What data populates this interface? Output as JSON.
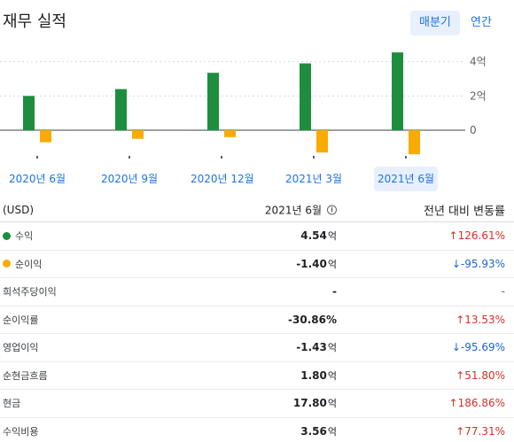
{
  "header": {
    "title": "재무 실적",
    "toggle_quarterly": "매분기",
    "toggle_annual": "연간"
  },
  "chart_data": {
    "type": "bar",
    "categories": [
      "2020년 6월",
      "2020년 9월",
      "2020년 12월",
      "2021년 3월",
      "2021년 6월"
    ],
    "series": [
      {
        "name": "수익",
        "values": [
          2.0,
          2.4,
          3.35,
          3.9,
          4.54
        ],
        "color": "#1e8e3e"
      },
      {
        "name": "순이익",
        "values": [
          -0.7,
          -0.5,
          -0.4,
          -1.3,
          -1.4
        ],
        "color": "#f9ab00"
      }
    ],
    "y_ticks": [
      0,
      2,
      4
    ],
    "y_tick_labels": [
      "0",
      "2억",
      "4억"
    ],
    "ylim": [
      -1.6,
      4.6
    ],
    "grid": true,
    "selected_index": 4
  },
  "table": {
    "header": {
      "label": "(USD)",
      "period": "2021년 6월",
      "info_icon": "info-icon",
      "change": "전년 대비 변동률"
    },
    "rows": [
      {
        "label": "수익",
        "dot": "#1e8e3e",
        "value": "4.54",
        "unit": "억",
        "change": "↑126.61%",
        "dir": "up"
      },
      {
        "label": "순이익",
        "dot": "#f9ab00",
        "value": "-1.40",
        "unit": "억",
        "change": "↓-95.93%",
        "dir": "down"
      },
      {
        "label": "희석주당이익",
        "value": "-",
        "unit": "",
        "change": "-",
        "dir": "neutral"
      },
      {
        "label": "순이익률",
        "value": "-30.86%",
        "unit": "",
        "change": "↑13.53%",
        "dir": "up"
      },
      {
        "label": "영업이익",
        "value": "-1.43",
        "unit": "억",
        "change": "↓-95.69%",
        "dir": "down"
      },
      {
        "label": "순현금흐름",
        "value": "1.80",
        "unit": "억",
        "change": "↑51.80%",
        "dir": "up"
      },
      {
        "label": "현금",
        "value": "17.80",
        "unit": "억",
        "change": "↑186.86%",
        "dir": "up"
      },
      {
        "label": "수익비용",
        "value": "3.56",
        "unit": "억",
        "change": "↑77.31%",
        "dir": "up"
      }
    ]
  }
}
